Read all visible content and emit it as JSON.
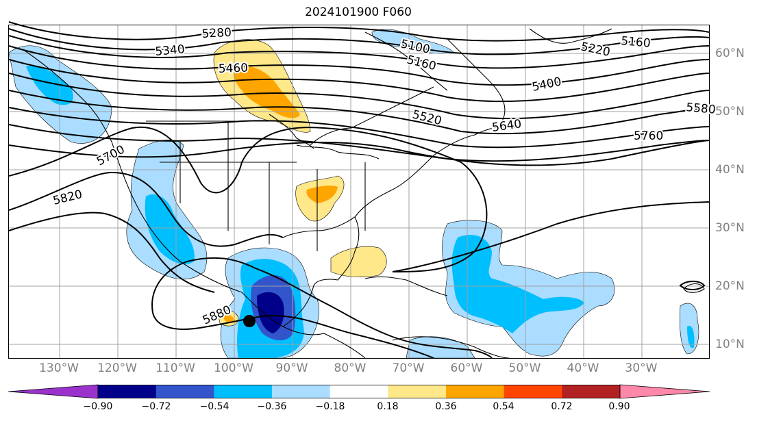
{
  "title": "2024101900 F060",
  "longitude_labels": [
    "130°W",
    "120°W",
    "110°W",
    "100°W",
    "90°W",
    "80°W",
    "70°W",
    "60°W",
    "50°W",
    "40°W",
    "30°W"
  ],
  "latitude_labels": [
    "60°N",
    "50°N",
    "40°N",
    "30°N",
    "20°N",
    "10°N"
  ],
  "contour_labels": [
    "5280",
    "5340",
    "5460",
    "5100",
    "5160",
    "5220",
    "5160",
    "5400",
    "5520",
    "5580",
    "5640",
    "5760",
    "5700",
    "5820",
    "5880"
  ],
  "colorbar": {
    "tick_labels": [
      "−0.90",
      "−0.72",
      "−0.54",
      "−0.36",
      "−0.18",
      "0.18",
      "0.36",
      "0.54",
      "0.72",
      "0.90"
    ],
    "colors": [
      "#9933cc",
      "#00008b",
      "#3355cc",
      "#00bfff",
      "#aaddff",
      "#ffffff",
      "#ffe88a",
      "#ffa500",
      "#ff4500",
      "#b22222",
      "#ff88aa"
    ]
  },
  "colors": {
    "gridline": "#a0a0a0",
    "axis_label": "#808080",
    "contour": "#000000"
  },
  "markers": [
    "storm-center-dot"
  ]
}
